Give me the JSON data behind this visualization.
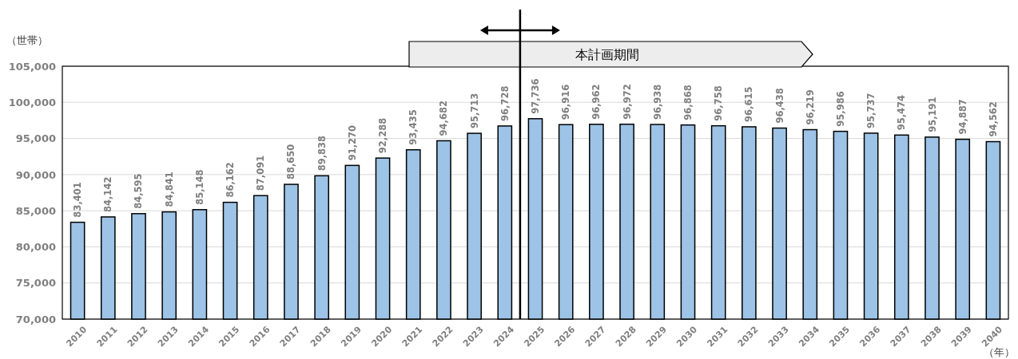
{
  "chart_data": {
    "type": "bar",
    "x": [
      2010,
      2011,
      2012,
      2013,
      2014,
      2015,
      2016,
      2017,
      2018,
      2019,
      2020,
      2021,
      2022,
      2023,
      2024,
      2025,
      2026,
      2027,
      2028,
      2029,
      2030,
      2031,
      2032,
      2033,
      2034,
      2035,
      2036,
      2037,
      2038,
      2039,
      2040
    ],
    "values": [
      83401,
      84142,
      84595,
      84841,
      85148,
      86162,
      87091,
      88650,
      89838,
      91270,
      92288,
      93435,
      94682,
      95713,
      96728,
      97736,
      96916,
      96962,
      96972,
      96938,
      96868,
      96758,
      96615,
      96438,
      96219,
      95986,
      95737,
      95474,
      95191,
      94887,
      94562
    ],
    "color": "#9dc3e6",
    "xlim": [
      2009.5,
      2040.5
    ],
    "xticks": [
      2010,
      2011,
      2012,
      2013,
      2014,
      2015,
      2016,
      2017,
      2018,
      2019,
      2020,
      2021,
      2022,
      2023,
      2024,
      2025,
      2026,
      2027,
      2028,
      2029,
      2030,
      2031,
      2032,
      2033,
      2034,
      2035,
      2036,
      2037,
      2038,
      2039,
      2040
    ],
    "ylim": [
      70000,
      105000
    ],
    "yticks": [
      {
        "value": 70000,
        "label": "70,000"
      },
      {
        "value": 75000,
        "label": "75,000"
      },
      {
        "value": 80000,
        "label": "80,000"
      },
      {
        "value": 85000,
        "label": "85,000"
      },
      {
        "value": 90000,
        "label": "90,000"
      },
      {
        "value": 95000,
        "label": "95,000"
      },
      {
        "value": 100000,
        "label": "100,000"
      },
      {
        "value": 105000,
        "label": "105,000"
      }
    ],
    "ylabel": "（世帯）",
    "xlabel": "（年）",
    "value_labels": [
      "83,401",
      "84,142",
      "84,595",
      "84,841",
      "85,148",
      "86,162",
      "87,091",
      "88,650",
      "89,838",
      "91,270",
      "92,288",
      "93,435",
      "94,682",
      "95,713",
      "96,728",
      "97,736",
      "96,916",
      "96,962",
      "96,972",
      "96,938",
      "96,868",
      "96,758",
      "96,615",
      "96,438",
      "96,219",
      "95,986",
      "95,737",
      "95,474",
      "95,191",
      "94,887",
      "94,562"
    ],
    "grid": "y",
    "ref_lines": [
      {
        "axis": "x",
        "value": 2024.5,
        "color": "#000000"
      }
    ],
    "annotations": [
      "本計画期間"
    ]
  }
}
